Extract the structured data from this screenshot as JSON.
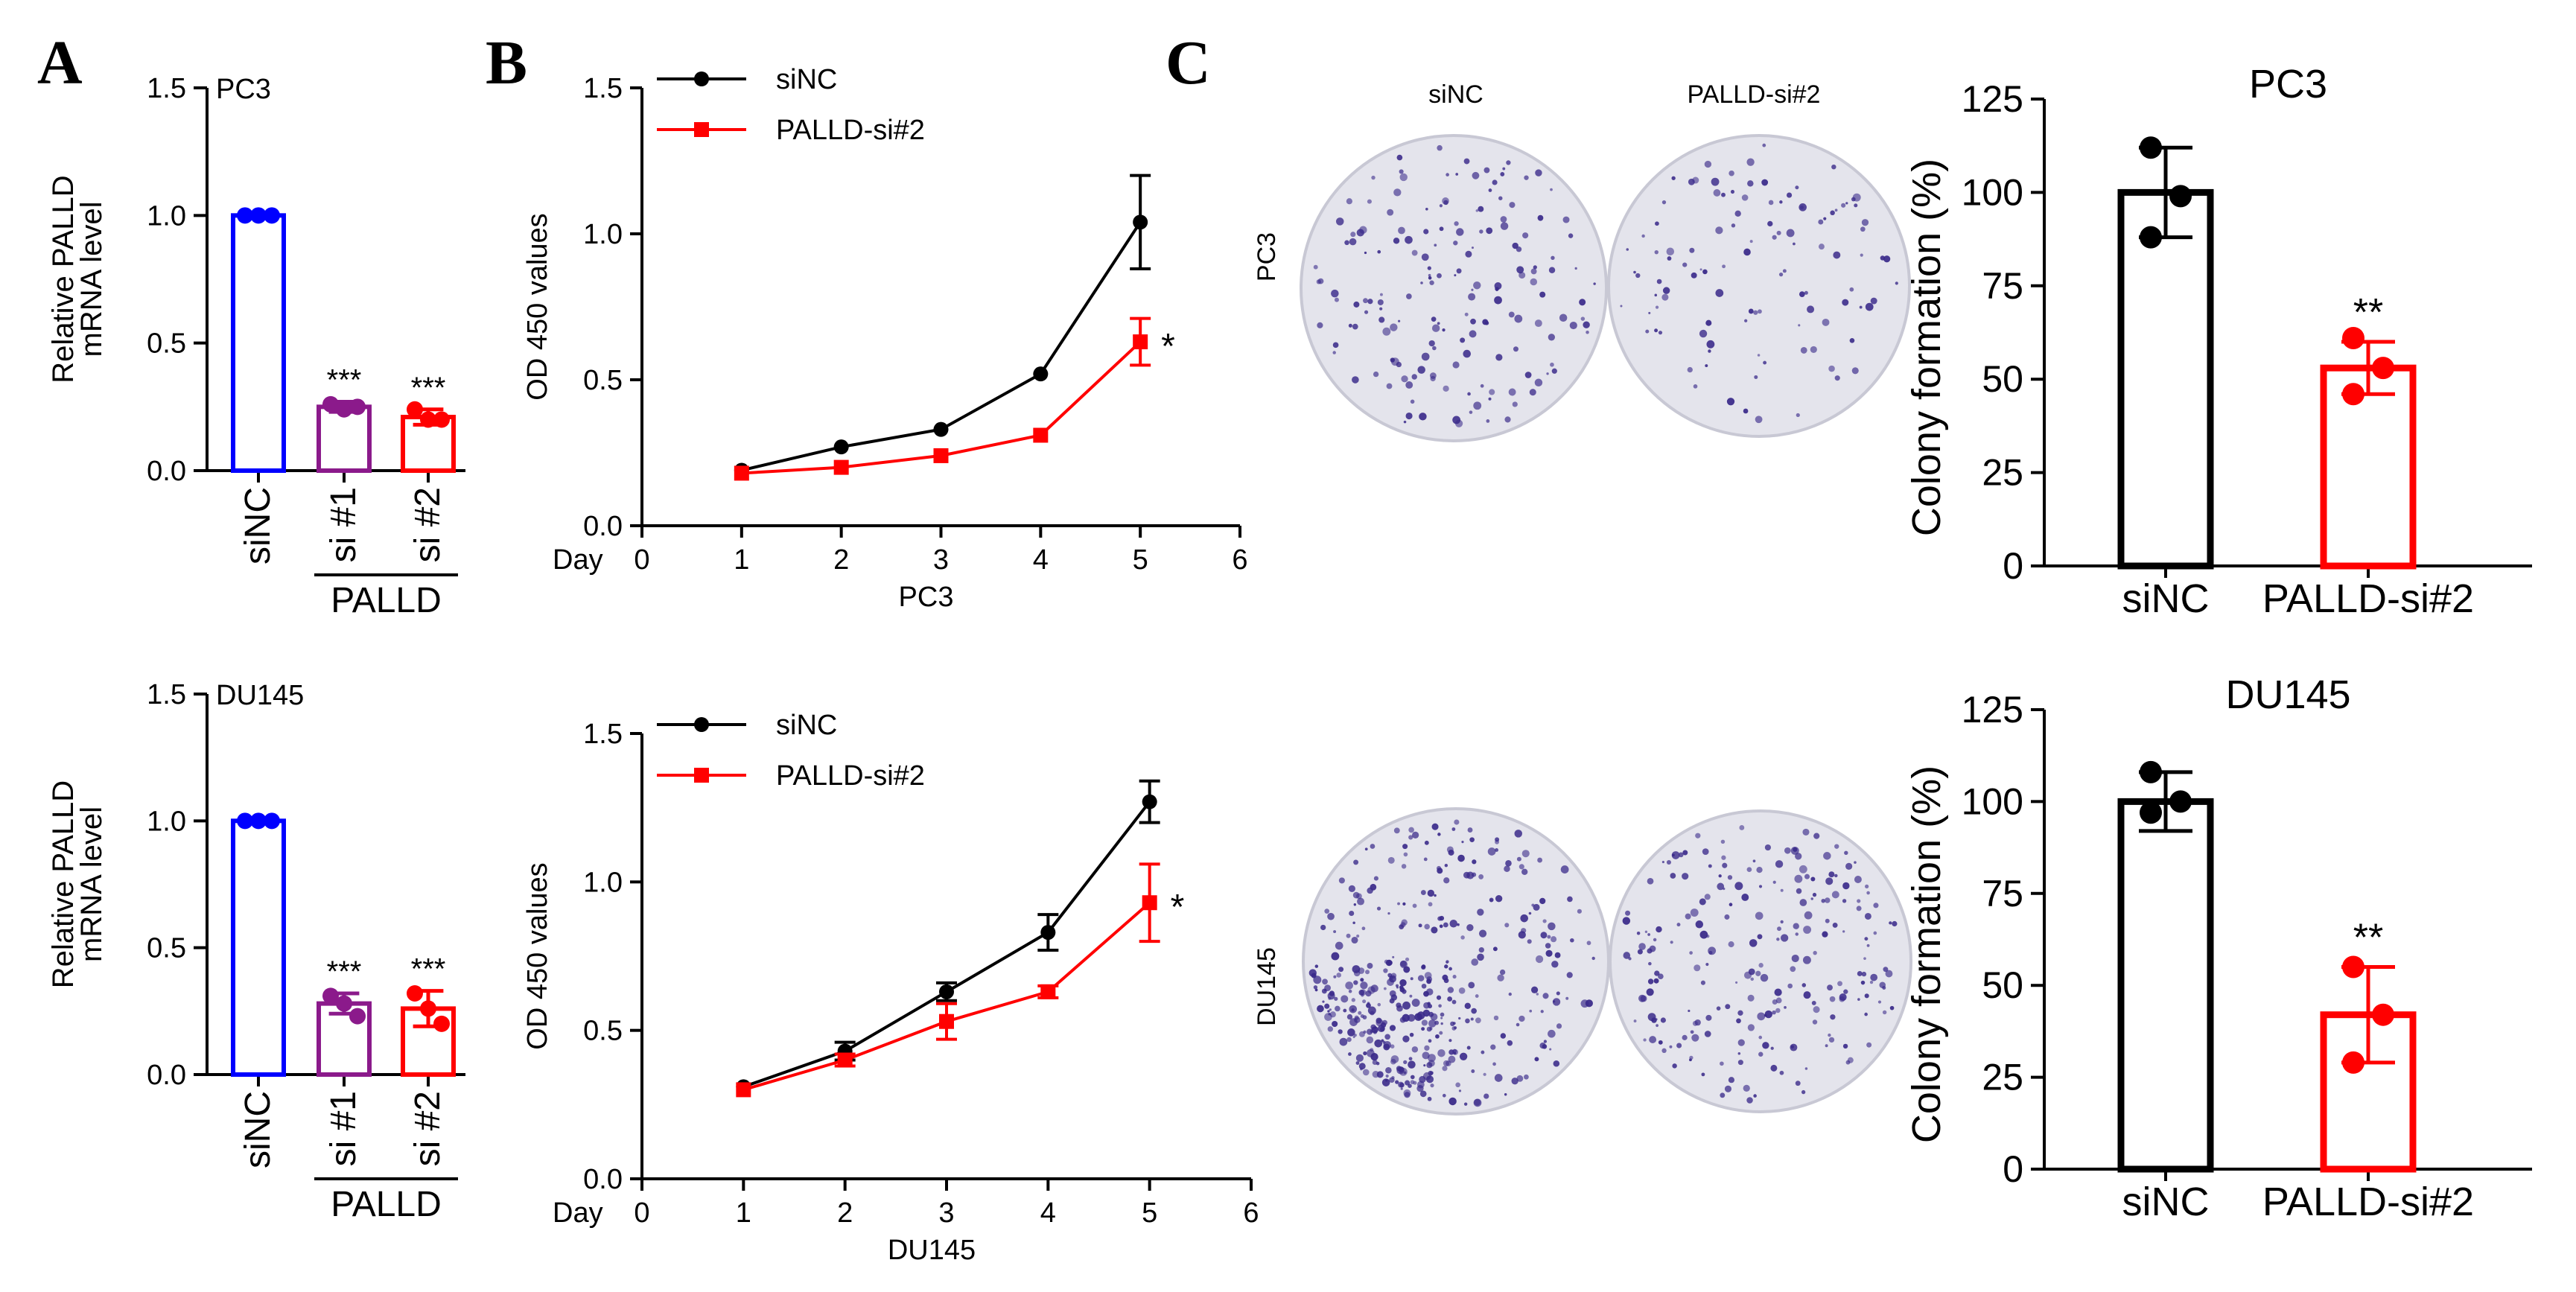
{
  "panel_letters": [
    "A",
    "B",
    "C"
  ],
  "colony_column_headers": [
    "siNC",
    "PALLD-si#2"
  ],
  "colony_row_labels": [
    "PC3",
    "DU145"
  ],
  "palld_group_label": "PALLD",
  "day_axis_prefix": "Day",
  "colors": {
    "siNC": "#000000",
    "si1": "#8B1A8B",
    "si2": "#FF0000",
    "blue": "#0000FF",
    "dish_bg": "#e4e4ec",
    "dish_dot": "#3a2a8a"
  },
  "chart_data": [
    {
      "id": "A_PC3",
      "type": "bar",
      "title": "PC3",
      "ylabel": "Relative PALLD mRNA level",
      "ylim": [
        0,
        1.5
      ],
      "yticks": [
        0.0,
        0.5,
        1.0,
        1.5
      ],
      "yticklabels": [
        "0.0",
        "0.5",
        "1.0",
        "1.5"
      ],
      "categories": [
        "siNC",
        "si #1",
        "si #2"
      ],
      "values": [
        1.0,
        0.25,
        0.21
      ],
      "errors": [
        0.005,
        0.02,
        0.03
      ],
      "points": [
        [
          1.0,
          1.0,
          1.0
        ],
        [
          0.26,
          0.24,
          0.25
        ],
        [
          0.24,
          0.2,
          0.2
        ]
      ],
      "bar_colors": [
        "#0000FF",
        "#8B1A8B",
        "#FF0000"
      ],
      "annotations": [
        "",
        "***",
        "***"
      ]
    },
    {
      "id": "A_DU145",
      "type": "bar",
      "title": "DU145",
      "ylabel": "Relative PALLD mRNA level",
      "ylim": [
        0,
        1.5
      ],
      "yticks": [
        0.0,
        0.5,
        1.0,
        1.5
      ],
      "yticklabels": [
        "0.0",
        "0.5",
        "1.0",
        "1.5"
      ],
      "categories": [
        "siNC",
        "si #1",
        "si #2"
      ],
      "values": [
        1.0,
        0.28,
        0.26
      ],
      "errors": [
        0.005,
        0.04,
        0.07
      ],
      "points": [
        [
          1.0,
          1.0,
          1.0
        ],
        [
          0.31,
          0.28,
          0.23
        ],
        [
          0.32,
          0.26,
          0.2
        ]
      ],
      "bar_colors": [
        "#0000FF",
        "#8B1A8B",
        "#FF0000"
      ],
      "annotations": [
        "",
        "***",
        "***"
      ]
    },
    {
      "id": "B_PC3",
      "type": "line",
      "xlabel": "PC3",
      "ylabel": "OD 450 values",
      "xlim": [
        0,
        6
      ],
      "ylim": [
        0,
        1.5
      ],
      "xticks": [
        0,
        1,
        2,
        3,
        4,
        5,
        6
      ],
      "yticks": [
        0.0,
        0.5,
        1.0,
        1.5
      ],
      "xticklabels": [
        "0",
        "1",
        "2",
        "3",
        "4",
        "5",
        "6"
      ],
      "yticklabels": [
        "0.0",
        "0.5",
        "1.0",
        "1.5"
      ],
      "x": [
        1,
        2,
        3,
        4,
        5
      ],
      "series": [
        {
          "name": "siNC",
          "color": "#000000",
          "marker": "circle",
          "values": [
            0.19,
            0.27,
            0.33,
            0.52,
            1.04
          ],
          "errors": [
            0.01,
            0.01,
            0.01,
            0.01,
            0.16
          ]
        },
        {
          "name": "PALLD-si#2",
          "color": "#FF0000",
          "marker": "square",
          "values": [
            0.18,
            0.2,
            0.24,
            0.31,
            0.63
          ],
          "errors": [
            0.01,
            0.01,
            0.01,
            0.01,
            0.08
          ]
        }
      ],
      "annotation": "*"
    },
    {
      "id": "B_DU145",
      "type": "line",
      "xlabel": "DU145",
      "ylabel": "OD 450 values",
      "xlim": [
        0,
        6
      ],
      "ylim": [
        0,
        1.5
      ],
      "xticks": [
        0,
        1,
        2,
        3,
        4,
        5,
        6
      ],
      "yticks": [
        0.0,
        0.5,
        1.0,
        1.5
      ],
      "xticklabels": [
        "0",
        "1",
        "2",
        "3",
        "4",
        "5",
        "6"
      ],
      "yticklabels": [
        "0.0",
        "0.5",
        "1.0",
        "1.5"
      ],
      "x": [
        1,
        2,
        3,
        4,
        5
      ],
      "series": [
        {
          "name": "siNC",
          "color": "#000000",
          "marker": "circle",
          "values": [
            0.31,
            0.43,
            0.63,
            0.83,
            1.27
          ],
          "errors": [
            0.01,
            0.03,
            0.03,
            0.06,
            0.07
          ]
        },
        {
          "name": "PALLD-si#2",
          "color": "#FF0000",
          "marker": "square",
          "values": [
            0.3,
            0.4,
            0.53,
            0.63,
            0.93
          ],
          "errors": [
            0.01,
            0.02,
            0.06,
            0.02,
            0.13
          ]
        }
      ],
      "annotation": "*"
    },
    {
      "id": "C_PC3",
      "type": "bar",
      "title": "PC3",
      "ylabel": "Colony formation (%)",
      "ylim": [
        0,
        125
      ],
      "yticks": [
        0,
        25,
        50,
        75,
        100,
        125
      ],
      "yticklabels": [
        "0",
        "25",
        "50",
        "75",
        "100",
        "125"
      ],
      "categories": [
        "siNC",
        "PALLD-si#2"
      ],
      "values": [
        100,
        53
      ],
      "errors": [
        12,
        7
      ],
      "points": [
        [
          112,
          99,
          88
        ],
        [
          61,
          53,
          46
        ]
      ],
      "bar_colors": [
        "#000000",
        "#FF0000"
      ],
      "annotations": [
        "",
        "**"
      ]
    },
    {
      "id": "C_DU145",
      "type": "bar",
      "title": "DU145",
      "ylabel": "Colony formation (%)",
      "ylim": [
        0,
        125
      ],
      "yticks": [
        0,
        25,
        50,
        75,
        100,
        125
      ],
      "yticklabels": [
        "0",
        "25",
        "50",
        "75",
        "100",
        "125"
      ],
      "categories": [
        "siNC",
        "PALLD-si#2"
      ],
      "values": [
        100,
        42
      ],
      "errors": [
        8,
        13
      ],
      "points": [
        [
          108,
          100,
          97
        ],
        [
          55,
          42,
          29
        ]
      ],
      "bar_colors": [
        "#000000",
        "#FF0000"
      ],
      "annotations": [
        "",
        "**"
      ]
    }
  ]
}
